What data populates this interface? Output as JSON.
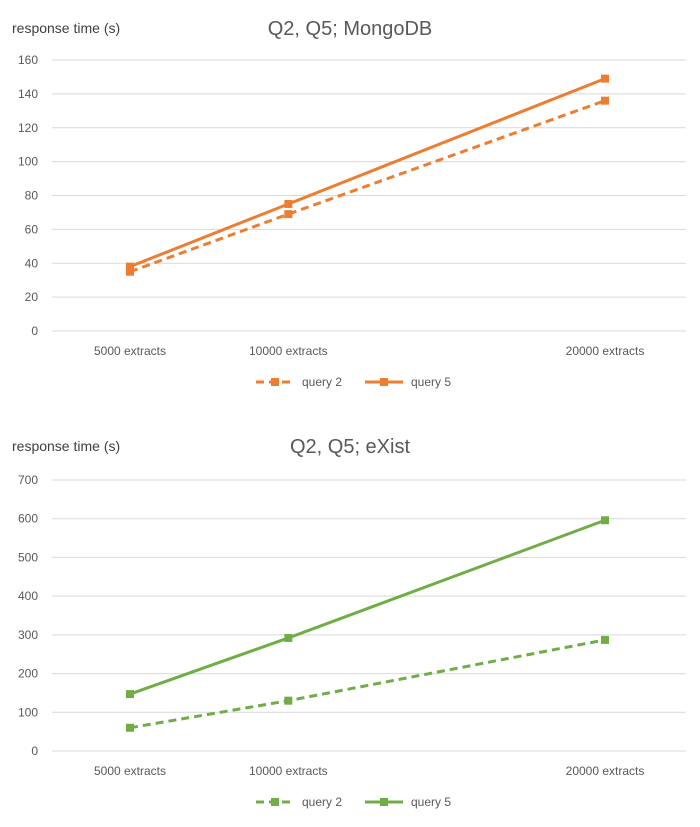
{
  "chart_data": [
    {
      "type": "line",
      "title": "Q2, Q5;  MongoDB",
      "ylabel": "response time (s)",
      "xlabel": "",
      "categories": [
        "5000 extracts",
        "10000 extracts",
        "20000 extracts"
      ],
      "x": [
        5000,
        10000,
        20000
      ],
      "yticks": [
        0,
        20,
        40,
        60,
        80,
        100,
        120,
        140,
        160
      ],
      "ylim": [
        0,
        160
      ],
      "grid": true,
      "legend_position": "bottom",
      "series": [
        {
          "name": "query 2",
          "values": [
            35,
            69,
            136
          ],
          "style": "dashed",
          "color": "#ED7D31"
        },
        {
          "name": "query 5",
          "values": [
            38,
            75,
            149
          ],
          "style": "solid",
          "color": "#ED7D31"
        }
      ]
    },
    {
      "type": "line",
      "title": "Q2, Q5;  eXist",
      "ylabel": "response time (s)",
      "xlabel": "",
      "categories": [
        "5000 extracts",
        "10000 extracts",
        "20000 extracts"
      ],
      "x": [
        5000,
        10000,
        20000
      ],
      "yticks": [
        0,
        100,
        200,
        300,
        400,
        500,
        600,
        700
      ],
      "ylim": [
        0,
        700
      ],
      "grid": true,
      "legend_position": "bottom",
      "series": [
        {
          "name": "query 2",
          "values": [
            60,
            130,
            287
          ],
          "style": "dashed",
          "color": "#70AD47"
        },
        {
          "name": "query 5",
          "values": [
            147,
            292,
            596
          ],
          "style": "solid",
          "color": "#70AD47"
        }
      ]
    }
  ]
}
